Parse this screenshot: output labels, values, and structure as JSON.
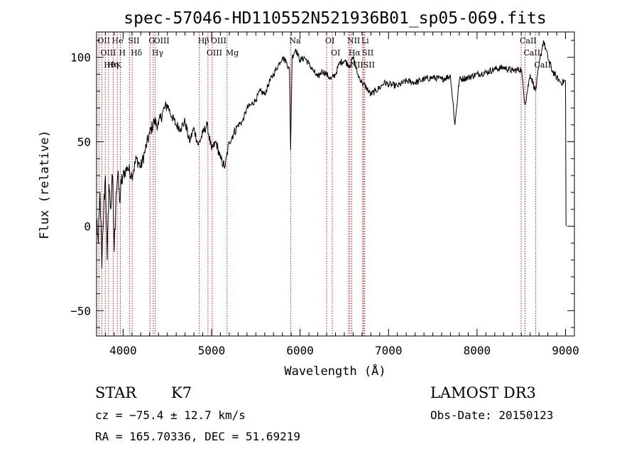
{
  "chart_data": {
    "type": "line",
    "title": "spec-57046-HD110552N521936B01_sp05-069.fits",
    "xlabel": "Wavelength (Å)",
    "ylabel": "Flux (relative)",
    "xlim": [
      3700,
      9100
    ],
    "ylim": [
      -65,
      115
    ],
    "xticks": [
      4000,
      5000,
      6000,
      7000,
      8000,
      9000
    ],
    "xtick_labels": [
      "4000",
      "5000",
      "6000",
      "7000",
      "8000",
      "9000"
    ],
    "yticks": [
      -50,
      0,
      50,
      100
    ],
    "ytick_labels": [
      "−50",
      "0",
      "50",
      "100"
    ],
    "series": [
      {
        "name": "spectrum",
        "color": "#000000",
        "x": [
          3700,
          3720,
          3740,
          3760,
          3780,
          3800,
          3820,
          3840,
          3860,
          3880,
          3900,
          3920,
          3940,
          3960,
          3980,
          4000,
          4050,
          4100,
          4150,
          4200,
          4250,
          4300,
          4350,
          4400,
          4450,
          4500,
          4550,
          4600,
          4650,
          4700,
          4750,
          4800,
          4850,
          4900,
          4950,
          5000,
          5050,
          5100,
          5150,
          5200,
          5250,
          5300,
          5350,
          5400,
          5450,
          5500,
          5550,
          5600,
          5650,
          5700,
          5750,
          5800,
          5850,
          5880,
          5893,
          5910,
          5950,
          6000,
          6050,
          6100,
          6150,
          6200,
          6250,
          6300,
          6350,
          6400,
          6450,
          6500,
          6563,
          6600,
          6650,
          6700,
          6750,
          6800,
          6850,
          6900,
          6950,
          7000,
          7100,
          7200,
          7300,
          7400,
          7500,
          7600,
          7700,
          7750,
          7800,
          7900,
          8000,
          8100,
          8200,
          8300,
          8400,
          8500,
          8542,
          8600,
          8662,
          8700,
          8750,
          8800,
          8850,
          8900,
          8950,
          9000,
          9005
        ],
        "values": [
          5,
          -10,
          20,
          -25,
          10,
          30,
          -20,
          25,
          10,
          30,
          -15,
          20,
          30,
          15,
          25,
          30,
          35,
          30,
          40,
          35,
          45,
          55,
          62,
          60,
          68,
          72,
          65,
          60,
          58,
          62,
          50,
          58,
          48,
          55,
          60,
          45,
          50,
          40,
          35,
          50,
          55,
          60,
          62,
          70,
          72,
          75,
          80,
          78,
          85,
          90,
          95,
          100,
          97,
          92,
          45,
          100,
          105,
          98,
          100,
          96,
          92,
          88,
          92,
          90,
          87,
          90,
          97,
          98,
          95,
          100,
          90,
          85,
          82,
          78,
          80,
          82,
          85,
          84,
          83,
          86,
          85,
          87,
          88,
          87,
          89,
          60,
          87,
          88,
          90,
          91,
          93,
          94,
          92,
          93,
          72,
          90,
          80,
          95,
          110,
          100,
          92,
          88,
          85,
          86,
          0
        ]
      }
    ],
    "line_ids": [
      {
        "label": "Hθ",
        "x": 3798
      },
      {
        "label": "OII",
        "x": 3727
      },
      {
        "label": "OIII",
        "x": 3760
      },
      {
        "label": "He",
        "x": 3889
      },
      {
        "label": "Hη",
        "x": 3835
      },
      {
        "label": "K",
        "x": 3934
      },
      {
        "label": "H",
        "x": 3969
      },
      {
        "label": "Hδ",
        "x": 4102
      },
      {
        "label": "SII",
        "x": 4072
      },
      {
        "label": "OIII",
        "x": 4363
      },
      {
        "label": "Hγ",
        "x": 4341
      },
      {
        "label": "G",
        "x": 4305
      },
      {
        "label": "OIII",
        "x": 5007
      },
      {
        "label": "OIII",
        "x": 4959
      },
      {
        "label": "Hβ",
        "x": 4861
      },
      {
        "label": "Mg",
        "x": 5175
      },
      {
        "label": "Na",
        "x": 5893
      },
      {
        "label": "OI",
        "x": 6300
      },
      {
        "label": "OI",
        "x": 6364
      },
      {
        "label": "Hα",
        "x": 6563
      },
      {
        "label": "NII",
        "x": 6548
      },
      {
        "label": "NII",
        "x": 6584
      },
      {
        "label": "SII",
        "x": 6717
      },
      {
        "label": "SII",
        "x": 6731
      },
      {
        "label": "Li",
        "x": 6708
      },
      {
        "label": "CaII",
        "x": 8498
      },
      {
        "label": "CaII",
        "x": 8542
      },
      {
        "label": "CaII",
        "x": 8662
      }
    ]
  },
  "footer": {
    "object_class": "STAR",
    "subclass": "K7",
    "cz": "cz = −75.4 ± 12.7 km/s",
    "radec": "RA = 165.70336, DEC =  51.69219",
    "survey": "LAMOST DR3",
    "obs_date": "Obs-Date: 20150123"
  }
}
